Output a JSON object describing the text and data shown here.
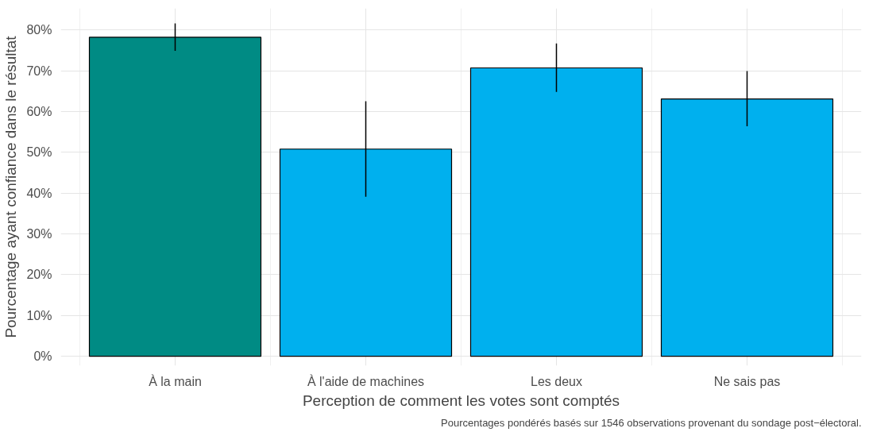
{
  "chart_data": {
    "type": "bar",
    "xlabel": "Perception de comment les votes sont comptés",
    "ylabel": "Pourcentage ayant confiance dans le résultat",
    "annotations": [
      "Pourcentages pondérés basés sur 1546 observations provenant du sondage post−électoral."
    ],
    "categories": [
      "À la main",
      "À l'aide de machines",
      "Les deux",
      "Ne sais pas"
    ],
    "values": [
      78.2,
      50.8,
      70.7,
      63.1
    ],
    "colors": [
      "#008b84",
      "#00b0ee",
      "#00b0ee",
      "#00b0ee"
    ],
    "errors": [
      [
        74.9,
        81.6
      ],
      [
        39.1,
        62.5
      ],
      [
        64.8,
        76.7
      ],
      [
        56.4,
        69.9
      ]
    ],
    "ylim": [
      -2.3,
      85.3
    ],
    "yticks": [
      {
        "value": 0,
        "label": "0%"
      },
      {
        "value": 10,
        "label": "10%"
      },
      {
        "value": 20,
        "label": "20%"
      },
      {
        "value": 30,
        "label": "30%"
      },
      {
        "value": 40,
        "label": "40%"
      },
      {
        "value": 50,
        "label": "50%"
      },
      {
        "value": 60,
        "label": "60%"
      },
      {
        "value": 70,
        "label": "70%"
      },
      {
        "value": 80,
        "label": "80%"
      }
    ],
    "grid": true
  }
}
